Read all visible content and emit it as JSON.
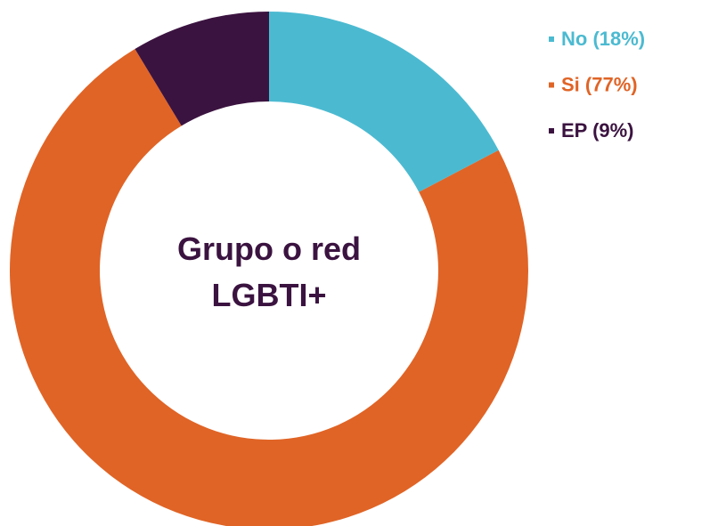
{
  "chart_data": {
    "type": "donut",
    "title": "Grupo o red LGBTI+",
    "categories": [
      "No (18%)",
      "Si (77%)",
      "EP (9%)"
    ],
    "values": [
      18,
      77,
      9
    ],
    "colors": [
      "#4bbad1",
      "#e06426",
      "#3b1340"
    ]
  }
}
